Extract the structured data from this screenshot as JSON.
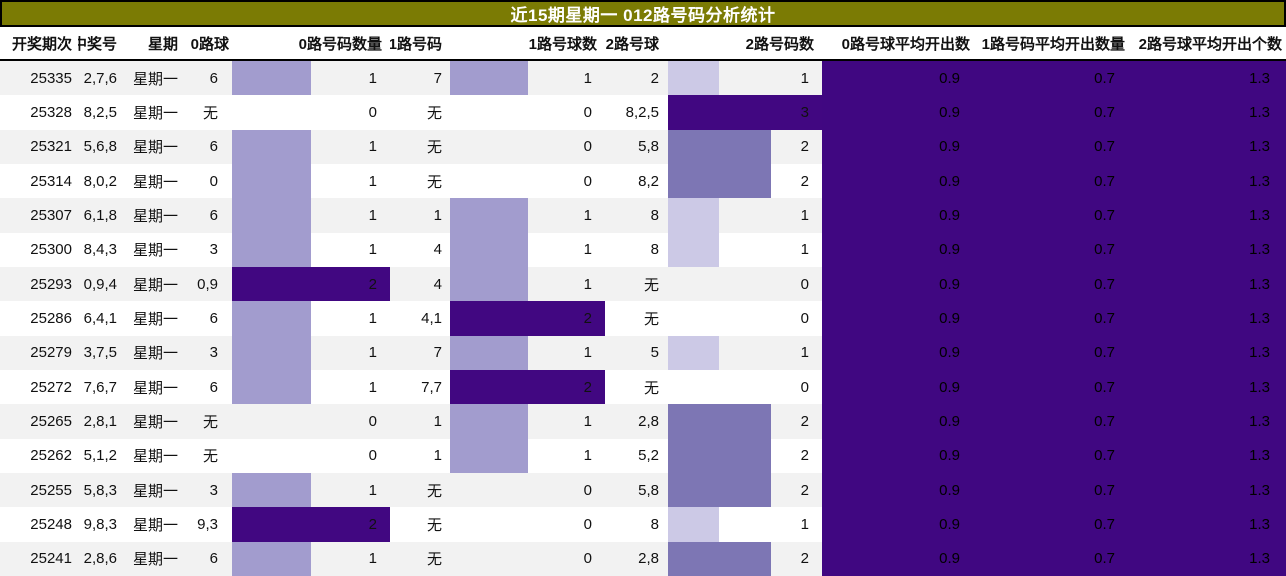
{
  "title": "近15期星期一 012路号码分析统计",
  "colors": {
    "title_bg": "#7B7B04",
    "title_text": "#FFFFFF",
    "stripe_odd": "#F2F2F2",
    "stripe_even": "#FFFFFF",
    "avg_block_bg": "#400781",
    "header_rule": "#000000"
  },
  "table": {
    "columns": [
      {
        "label": "开奖期次"
      },
      {
        "label": "中奖号"
      },
      {
        "label": "星期"
      },
      {
        "label": "0路球"
      },
      {
        "label": "0路号码数量"
      },
      {
        "label": "1路号码"
      },
      {
        "label": "1路号球数"
      },
      {
        "label": "2路号球"
      },
      {
        "label": "2路号码数"
      },
      {
        "label": "0路号球平均开出数"
      },
      {
        "label": "1路号码平均开出数量"
      },
      {
        "label": "2路号球平均开出个数"
      }
    ],
    "empty_marker": "无",
    "bar_colors": {
      "1_of_2": "#A29CCE",
      "2_of_2": "#410781",
      "1_of_3": "#CCC9E6",
      "2_of_3": "#7D76B4",
      "3_of_3": "#410781"
    },
    "averages": {
      "avg0": "0.9",
      "avg1": "0.7",
      "avg2": "1.3"
    },
    "rows": [
      {
        "period": "25335",
        "win": "2,7,6",
        "week": "星期一",
        "r0_ball": "6",
        "r0_count": 1,
        "r1_ball": "7",
        "r1_count": 1,
        "r2_ball": "2",
        "r2_count": 1
      },
      {
        "period": "25328",
        "win": "8,2,5",
        "week": "星期一",
        "r0_ball": "无",
        "r0_count": 0,
        "r1_ball": "无",
        "r1_count": 0,
        "r2_ball": "8,2,5",
        "r2_count": 3
      },
      {
        "period": "25321",
        "win": "5,6,8",
        "week": "星期一",
        "r0_ball": "6",
        "r0_count": 1,
        "r1_ball": "无",
        "r1_count": 0,
        "r2_ball": "5,8",
        "r2_count": 2
      },
      {
        "period": "25314",
        "win": "8,0,2",
        "week": "星期一",
        "r0_ball": "0",
        "r0_count": 1,
        "r1_ball": "无",
        "r1_count": 0,
        "r2_ball": "8,2",
        "r2_count": 2
      },
      {
        "period": "25307",
        "win": "6,1,8",
        "week": "星期一",
        "r0_ball": "6",
        "r0_count": 1,
        "r1_ball": "1",
        "r1_count": 1,
        "r2_ball": "8",
        "r2_count": 1
      },
      {
        "period": "25300",
        "win": "8,4,3",
        "week": "星期一",
        "r0_ball": "3",
        "r0_count": 1,
        "r1_ball": "4",
        "r1_count": 1,
        "r2_ball": "8",
        "r2_count": 1
      },
      {
        "period": "25293",
        "win": "0,9,4",
        "week": "星期一",
        "r0_ball": "0,9",
        "r0_count": 2,
        "r1_ball": "4",
        "r1_count": 1,
        "r2_ball": "无",
        "r2_count": 0
      },
      {
        "period": "25286",
        "win": "6,4,1",
        "week": "星期一",
        "r0_ball": "6",
        "r0_count": 1,
        "r1_ball": "4,1",
        "r1_count": 2,
        "r2_ball": "无",
        "r2_count": 0
      },
      {
        "period": "25279",
        "win": "3,7,5",
        "week": "星期一",
        "r0_ball": "3",
        "r0_count": 1,
        "r1_ball": "7",
        "r1_count": 1,
        "r2_ball": "5",
        "r2_count": 1
      },
      {
        "period": "25272",
        "win": "7,6,7",
        "week": "星期一",
        "r0_ball": "6",
        "r0_count": 1,
        "r1_ball": "7,7",
        "r1_count": 2,
        "r2_ball": "无",
        "r2_count": 0
      },
      {
        "period": "25265",
        "win": "2,8,1",
        "week": "星期一",
        "r0_ball": "无",
        "r0_count": 0,
        "r1_ball": "1",
        "r1_count": 1,
        "r2_ball": "2,8",
        "r2_count": 2
      },
      {
        "period": "25262",
        "win": "5,1,2",
        "week": "星期一",
        "r0_ball": "无",
        "r0_count": 0,
        "r1_ball": "1",
        "r1_count": 1,
        "r2_ball": "5,2",
        "r2_count": 2
      },
      {
        "period": "25255",
        "win": "5,8,3",
        "week": "星期一",
        "r0_ball": "3",
        "r0_count": 1,
        "r1_ball": "无",
        "r1_count": 0,
        "r2_ball": "5,8",
        "r2_count": 2
      },
      {
        "period": "25248",
        "win": "9,8,3",
        "week": "星期一",
        "r0_ball": "9,3",
        "r0_count": 2,
        "r1_ball": "无",
        "r1_count": 0,
        "r2_ball": "8",
        "r2_count": 1
      },
      {
        "period": "25241",
        "win": "2,8,6",
        "week": "星期一",
        "r0_ball": "6",
        "r0_count": 1,
        "r1_ball": "无",
        "r1_count": 0,
        "r2_ball": "2,8",
        "r2_count": 2
      }
    ]
  },
  "chart_data": {
    "type": "table",
    "title": "近15期星期一 012路号码分析统计",
    "categories": [
      "25335",
      "25328",
      "25321",
      "25314",
      "25307",
      "25300",
      "25293",
      "25286",
      "25279",
      "25272",
      "25265",
      "25262",
      "25255",
      "25248",
      "25241"
    ],
    "series": [
      {
        "name": "0路号码数量",
        "values": [
          1,
          0,
          1,
          1,
          1,
          1,
          2,
          1,
          1,
          1,
          0,
          0,
          1,
          2,
          1
        ],
        "max": 2
      },
      {
        "name": "1路号球数",
        "values": [
          1,
          0,
          0,
          0,
          1,
          1,
          1,
          2,
          1,
          2,
          1,
          1,
          0,
          0,
          0
        ],
        "max": 2
      },
      {
        "name": "2路号码数",
        "values": [
          1,
          3,
          2,
          2,
          1,
          1,
          0,
          0,
          1,
          0,
          2,
          2,
          2,
          1,
          2
        ],
        "max": 3
      }
    ],
    "averages": {
      "0路号球平均开出数": 0.9,
      "1路号码平均开出数量": 0.7,
      "2路号球平均开出个数": 1.3
    },
    "legend_position": "none",
    "grid": false
  }
}
